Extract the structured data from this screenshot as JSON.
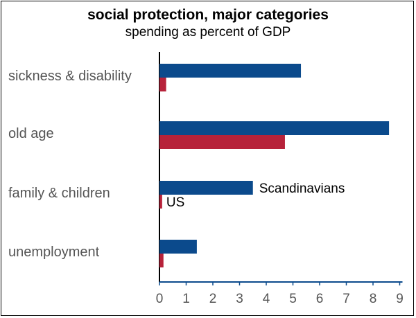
{
  "colors": {
    "scandinavians": "#0b4a8c",
    "us": "#b7223a",
    "axis": "#000000",
    "x_axis": "#0b4a8c"
  },
  "chart_data": {
    "type": "bar",
    "orientation": "horizontal",
    "title": "social protection, major categories",
    "subtitle": "spending as percent of GDP",
    "categories": [
      "sickness & disability",
      "old age",
      "family & children",
      "unemployment"
    ],
    "series": [
      {
        "name": "Scandinavians",
        "values": [
          5.3,
          8.6,
          3.5,
          1.4
        ]
      },
      {
        "name": "US",
        "values": [
          0.25,
          4.7,
          0.1,
          0.15
        ]
      }
    ],
    "xlim": [
      0,
      9
    ],
    "xticks": [
      "0",
      "1",
      "2",
      "3",
      "4",
      "5",
      "6",
      "7",
      "8",
      "9"
    ],
    "grid": false,
    "legend": "inline labels next to family & children bars"
  }
}
